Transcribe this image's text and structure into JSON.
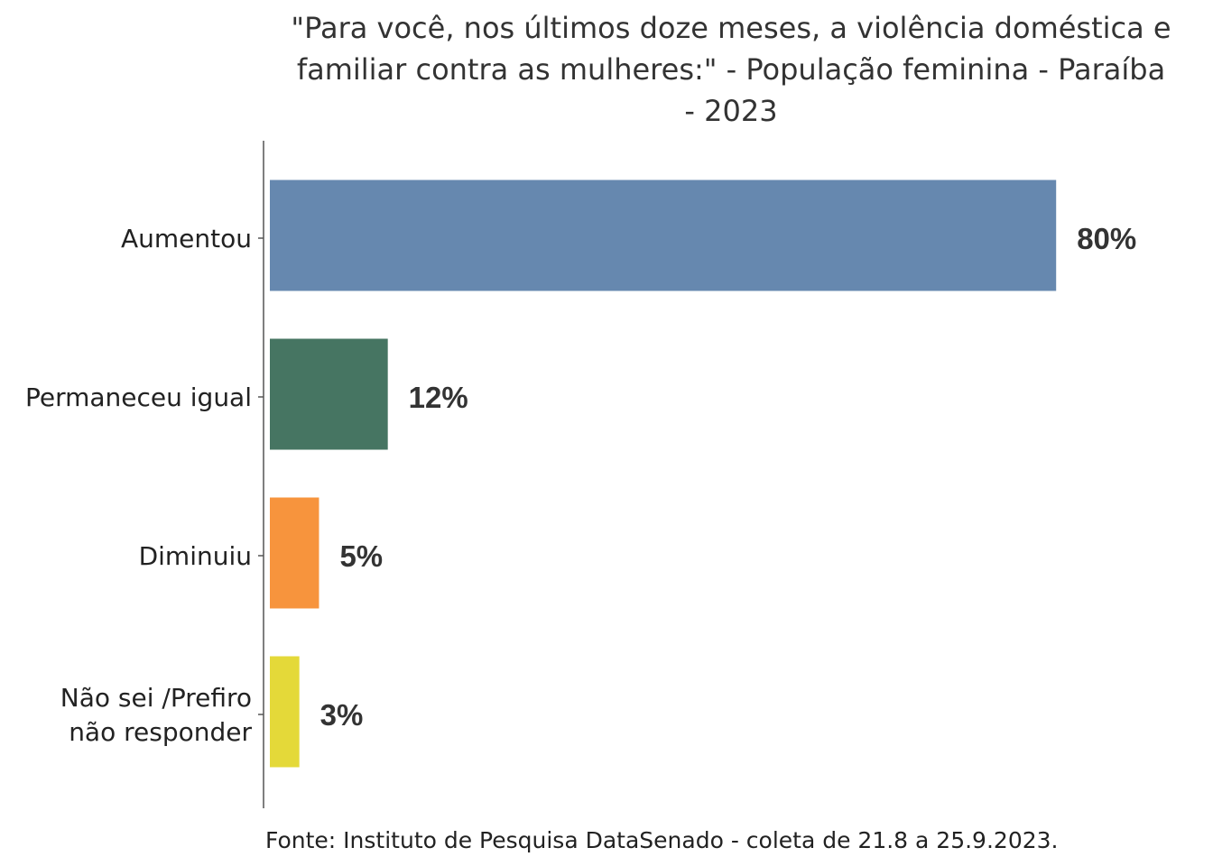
{
  "chart_data": {
    "type": "bar",
    "orientation": "horizontal",
    "title_lines": [
      "\"Para você, nos últimos doze meses, a violência doméstica e",
      "familiar contra as mulheres:\" - População feminina - Paraíba",
      "- 2023"
    ],
    "categories": [
      [
        "Aumentou"
      ],
      [
        "Permaneceu igual"
      ],
      [
        "Diminuiu"
      ],
      [
        "Não sei /Prefiro",
        "não responder"
      ]
    ],
    "values": [
      80,
      12,
      5,
      3
    ],
    "value_labels": [
      "80%",
      "12%",
      "5%",
      "3%"
    ],
    "colors": [
      "#6688AF",
      "#467562",
      "#F7943D",
      "#E4D939"
    ],
    "xlim": [
      0,
      100
    ],
    "grid": false,
    "legend": "none",
    "source": "Fonte: Instituto de Pesquisa DataSenado - coleta de 21.8 a 25.9.2023."
  }
}
